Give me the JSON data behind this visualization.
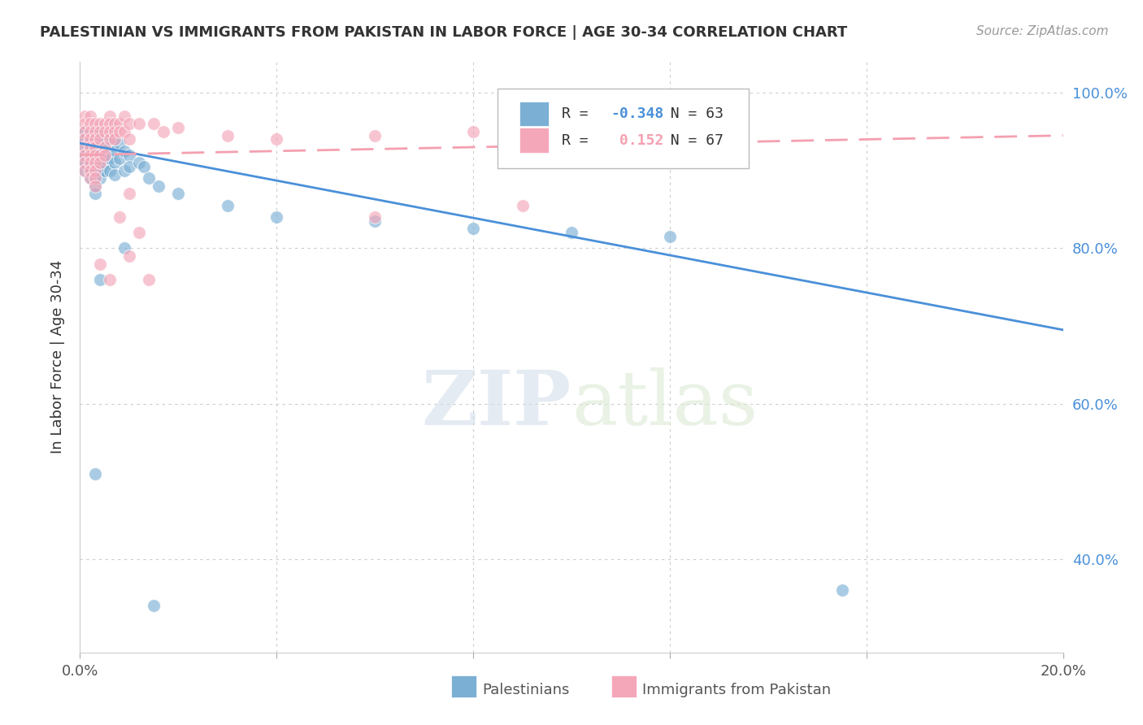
{
  "title": "PALESTINIAN VS IMMIGRANTS FROM PAKISTAN IN LABOR FORCE | AGE 30-34 CORRELATION CHART",
  "source": "Source: ZipAtlas.com",
  "ylabel": "In Labor Force | Age 30-34",
  "legend_blue_label": "Palestinians",
  "legend_pink_label": "Immigrants from Pakistan",
  "R_blue": -0.348,
  "N_blue": 63,
  "R_pink": 0.152,
  "N_pink": 67,
  "xlim": [
    0.0,
    0.2
  ],
  "ylim": [
    0.28,
    1.04
  ],
  "xticks": [
    0.0,
    0.04,
    0.08,
    0.12,
    0.16,
    0.2
  ],
  "yticks": [
    0.4,
    0.6,
    0.8,
    1.0
  ],
  "watermark": "ZIPatlas",
  "bg_color": "#ffffff",
  "blue_color": "#7BAFD4",
  "pink_color": "#F4A7B9",
  "blue_line_color": "#4A90D9",
  "pink_line_color": "#F4A0B0",
  "blue_line": [
    0.0,
    0.935,
    0.2,
    0.695
  ],
  "pink_line": [
    0.0,
    0.92,
    0.2,
    0.945
  ],
  "blue_scatter": [
    [
      0.001,
      0.95
    ],
    [
      0.001,
      0.94
    ],
    [
      0.001,
      0.93
    ],
    [
      0.001,
      0.92
    ],
    [
      0.001,
      0.91
    ],
    [
      0.001,
      0.9
    ],
    [
      0.002,
      0.95
    ],
    [
      0.002,
      0.94
    ],
    [
      0.002,
      0.93
    ],
    [
      0.002,
      0.92
    ],
    [
      0.002,
      0.91
    ],
    [
      0.002,
      0.9
    ],
    [
      0.002,
      0.89
    ],
    [
      0.003,
      0.95
    ],
    [
      0.003,
      0.94
    ],
    [
      0.003,
      0.93
    ],
    [
      0.003,
      0.92
    ],
    [
      0.003,
      0.91
    ],
    [
      0.003,
      0.9
    ],
    [
      0.003,
      0.89
    ],
    [
      0.003,
      0.88
    ],
    [
      0.003,
      0.87
    ],
    [
      0.004,
      0.945
    ],
    [
      0.004,
      0.935
    ],
    [
      0.004,
      0.92
    ],
    [
      0.004,
      0.91
    ],
    [
      0.004,
      0.9
    ],
    [
      0.004,
      0.89
    ],
    [
      0.005,
      0.94
    ],
    [
      0.005,
      0.93
    ],
    [
      0.005,
      0.92
    ],
    [
      0.005,
      0.91
    ],
    [
      0.005,
      0.9
    ],
    [
      0.006,
      0.945
    ],
    [
      0.006,
      0.93
    ],
    [
      0.006,
      0.915
    ],
    [
      0.006,
      0.9
    ],
    [
      0.007,
      0.94
    ],
    [
      0.007,
      0.925
    ],
    [
      0.007,
      0.91
    ],
    [
      0.007,
      0.895
    ],
    [
      0.008,
      0.935
    ],
    [
      0.008,
      0.915
    ],
    [
      0.009,
      0.925
    ],
    [
      0.009,
      0.9
    ],
    [
      0.01,
      0.92
    ],
    [
      0.01,
      0.905
    ],
    [
      0.012,
      0.91
    ],
    [
      0.013,
      0.905
    ],
    [
      0.014,
      0.89
    ],
    [
      0.016,
      0.88
    ],
    [
      0.02,
      0.87
    ],
    [
      0.03,
      0.855
    ],
    [
      0.04,
      0.84
    ],
    [
      0.06,
      0.835
    ],
    [
      0.08,
      0.825
    ],
    [
      0.1,
      0.82
    ],
    [
      0.12,
      0.815
    ],
    [
      0.003,
      0.51
    ],
    [
      0.004,
      0.76
    ],
    [
      0.009,
      0.8
    ],
    [
      0.015,
      0.34
    ],
    [
      0.155,
      0.36
    ]
  ],
  "pink_scatter": [
    [
      0.001,
      0.97
    ],
    [
      0.001,
      0.96
    ],
    [
      0.001,
      0.95
    ],
    [
      0.001,
      0.94
    ],
    [
      0.001,
      0.93
    ],
    [
      0.001,
      0.92
    ],
    [
      0.001,
      0.91
    ],
    [
      0.001,
      0.9
    ],
    [
      0.002,
      0.97
    ],
    [
      0.002,
      0.96
    ],
    [
      0.002,
      0.95
    ],
    [
      0.002,
      0.94
    ],
    [
      0.002,
      0.93
    ],
    [
      0.002,
      0.92
    ],
    [
      0.002,
      0.91
    ],
    [
      0.002,
      0.9
    ],
    [
      0.002,
      0.89
    ],
    [
      0.003,
      0.96
    ],
    [
      0.003,
      0.95
    ],
    [
      0.003,
      0.94
    ],
    [
      0.003,
      0.93
    ],
    [
      0.003,
      0.92
    ],
    [
      0.003,
      0.91
    ],
    [
      0.003,
      0.9
    ],
    [
      0.003,
      0.89
    ],
    [
      0.003,
      0.88
    ],
    [
      0.004,
      0.96
    ],
    [
      0.004,
      0.95
    ],
    [
      0.004,
      0.94
    ],
    [
      0.004,
      0.92
    ],
    [
      0.004,
      0.91
    ],
    [
      0.005,
      0.96
    ],
    [
      0.005,
      0.95
    ],
    [
      0.005,
      0.93
    ],
    [
      0.005,
      0.92
    ],
    [
      0.006,
      0.97
    ],
    [
      0.006,
      0.96
    ],
    [
      0.006,
      0.95
    ],
    [
      0.006,
      0.94
    ],
    [
      0.007,
      0.96
    ],
    [
      0.007,
      0.95
    ],
    [
      0.007,
      0.94
    ],
    [
      0.008,
      0.96
    ],
    [
      0.008,
      0.95
    ],
    [
      0.009,
      0.97
    ],
    [
      0.009,
      0.95
    ],
    [
      0.01,
      0.96
    ],
    [
      0.01,
      0.94
    ],
    [
      0.012,
      0.96
    ],
    [
      0.015,
      0.96
    ],
    [
      0.017,
      0.95
    ],
    [
      0.02,
      0.955
    ],
    [
      0.03,
      0.945
    ],
    [
      0.04,
      0.94
    ],
    [
      0.06,
      0.945
    ],
    [
      0.08,
      0.95
    ],
    [
      0.1,
      0.95
    ],
    [
      0.12,
      0.945
    ],
    [
      0.008,
      0.84
    ],
    [
      0.01,
      0.87
    ],
    [
      0.01,
      0.79
    ],
    [
      0.012,
      0.82
    ],
    [
      0.014,
      0.76
    ],
    [
      0.004,
      0.78
    ],
    [
      0.006,
      0.76
    ],
    [
      0.06,
      0.84
    ],
    [
      0.09,
      0.855
    ]
  ]
}
